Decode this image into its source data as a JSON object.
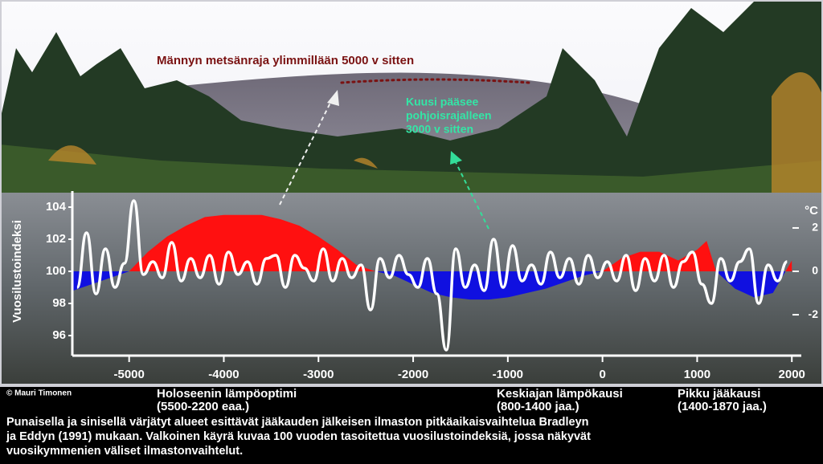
{
  "chart_data": {
    "type": "line",
    "ylabel": "Vuosilustoindeksi",
    "y2label": "°C",
    "xlim": [
      -5600,
      2100
    ],
    "xticks": [
      -5000,
      -4000,
      -3000,
      -2000,
      -1000,
      0,
      1000,
      2000
    ],
    "ylim": [
      95,
      105
    ],
    "yticks": [
      96,
      98,
      100,
      102,
      104
    ],
    "y2lim": [
      -3.7,
      3.7
    ],
    "y2ticks": [
      2,
      0,
      -2
    ],
    "series": [
      {
        "name": "Bradley & Eddy (1991)",
        "axis": "y2",
        "kind": "area",
        "color": "#ff1010",
        "negative_color": "#1010e0",
        "x": [
          -5600,
          -5400,
          -5200,
          -5000,
          -4800,
          -4600,
          -4400,
          -4200,
          -4000,
          -3800,
          -3600,
          -3400,
          -3200,
          -3000,
          -2800,
          -2600,
          -2400,
          -2200,
          -2000,
          -1800,
          -1600,
          -1400,
          -1200,
          -1000,
          -800,
          -600,
          -400,
          -200,
          0,
          200,
          400,
          600,
          800,
          1000,
          1100,
          1200,
          1400,
          1600,
          1800,
          2000
        ],
        "values": [
          -0.9,
          -0.6,
          -0.3,
          0,
          0.9,
          1.6,
          2.1,
          2.5,
          2.6,
          2.6,
          2.6,
          2.4,
          2.1,
          1.6,
          1.0,
          0.3,
          0,
          -0.2,
          -0.6,
          -1.0,
          -1.2,
          -1.3,
          -1.3,
          -1.2,
          -1.0,
          -0.8,
          -0.5,
          -0.2,
          0,
          0.6,
          0.9,
          0.9,
          0.5,
          1.0,
          1.4,
          0,
          -0.8,
          -1.2,
          -1.0,
          0.5
        ]
      },
      {
        "name": "Vuosilustoindeksi",
        "axis": "y",
        "kind": "line",
        "color": "#ffffff",
        "x": [
          -5550,
          -5450,
          -5350,
          -5250,
          -5150,
          -5050,
          -4950,
          -4850,
          -4750,
          -4650,
          -4550,
          -4450,
          -4350,
          -4250,
          -4150,
          -4050,
          -3950,
          -3850,
          -3750,
          -3650,
          -3550,
          -3450,
          -3350,
          -3250,
          -3150,
          -3050,
          -2950,
          -2850,
          -2750,
          -2650,
          -2550,
          -2450,
          -2350,
          -2250,
          -2150,
          -2050,
          -1950,
          -1850,
          -1750,
          -1650,
          -1550,
          -1450,
          -1350,
          -1250,
          -1150,
          -1050,
          -950,
          -850,
          -750,
          -650,
          -550,
          -450,
          -350,
          -250,
          -150,
          -50,
          50,
          150,
          250,
          350,
          450,
          550,
          650,
          750,
          850,
          950,
          1050,
          1150,
          1250,
          1350,
          1450,
          1550,
          1650,
          1750,
          1850,
          1950
        ],
        "values": [
          99.0,
          102.4,
          98.6,
          101.4,
          99.0,
          100.5,
          104.4,
          99.8,
          100.6,
          99.6,
          101.8,
          99.4,
          100.8,
          99.6,
          101.0,
          99.2,
          101.2,
          99.8,
          100.6,
          99.2,
          100.8,
          101.0,
          99.0,
          101.0,
          100.2,
          99.4,
          101.4,
          99.4,
          100.8,
          99.6,
          100.4,
          97.6,
          100.8,
          99.6,
          101.0,
          99.8,
          99.0,
          100.8,
          98.6,
          95.1,
          101.4,
          99.0,
          100.4,
          98.8,
          102.0,
          99.0,
          101.6,
          99.4,
          100.4,
          99.2,
          101.2,
          99.6,
          100.8,
          99.2,
          101.0,
          99.6,
          100.6,
          99.4,
          101.0,
          98.8,
          100.8,
          99.4,
          101.0,
          99.0,
          100.6,
          101.2,
          99.2,
          98.0,
          100.8,
          99.4,
          100.6,
          101.4,
          98.0,
          100.4,
          99.4,
          100.6
        ]
      }
    ],
    "annotations": {
      "pine": "Männyn metsänraja ylimmillään 5000 v  sitten",
      "spruce": [
        "Kuusi pääsee",
        "pohjoisrajalleen",
        "3000 v sitten"
      ],
      "copyright": "© Mauri Timonen",
      "holocene": [
        "Holoseenin lämpöoptimi",
        "(5500-2200 eaa.)"
      ],
      "medieval": [
        "Keskiajan lämpökausi",
        "(800-1400 jaa.)"
      ],
      "littleiceage": [
        "Pikku jääkausi",
        "(1400-1870 jaa.)"
      ],
      "caption": [
        "Punaisella ja sinisellä värjätyt alueet esittävät jääkauden jälkeisen ilmaston pitkäaikaisvaihtelua Bradleyn",
        "ja Eddyn (1991) mukaan. Valkoinen käyrä kuvaa 100 vuoden tasoitettua vuosilustoindeksiä, jossa näkyvät",
        "vuosikymmenien väliset ilmastonvaihtelut."
      ]
    }
  }
}
